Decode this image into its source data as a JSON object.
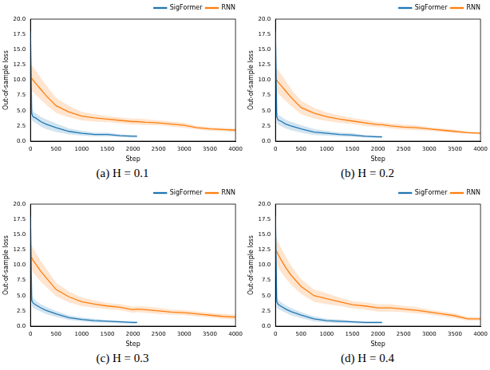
{
  "chart_data": [
    {
      "type": "line",
      "title": "(a) H = 0.1",
      "x_label": "Step",
      "y_label": "Out-of-sample loss",
      "legend": "upper right",
      "grid": false,
      "x": [
        0,
        25,
        50,
        100,
        200,
        300,
        500,
        750,
        1000,
        1250,
        1500,
        1750,
        2000,
        2080,
        2250,
        2500,
        2750,
        3000,
        3250,
        3500,
        3750,
        4000
      ],
      "xlim": [
        0,
        4000
      ],
      "xticks": [
        0,
        500,
        1000,
        1500,
        2000,
        2500,
        3000,
        3500,
        4000
      ],
      "ylim": [
        0,
        20
      ],
      "yticks": [
        {
          "value": 0,
          "label": "0.0"
        },
        2.5,
        {
          "value": 5,
          "label": "5.0"
        },
        7.5,
        {
          "value": 10,
          "label": "10.0"
        },
        12.5,
        {
          "value": 15,
          "label": "15.0"
        },
        17.5,
        {
          "value": 20,
          "label": "20.0"
        }
      ],
      "series": [
        {
          "name": "SigFormer",
          "color": "#1f77b4",
          "values": [
            18,
            4.5,
            4.0,
            3.8,
            3.2,
            2.8,
            2.2,
            1.6,
            1.3,
            1.1,
            1.1,
            0.9,
            0.8,
            0.8,
            null,
            null,
            null,
            null,
            null,
            null,
            null,
            null
          ],
          "lower": [
            16,
            3.5,
            3.2,
            3.0,
            2.4,
            2.0,
            1.5,
            1.1,
            0.9,
            0.8,
            0.8,
            0.7,
            0.6,
            0.6,
            null,
            null,
            null,
            null,
            null,
            null,
            null,
            null
          ],
          "upper": [
            20,
            5.5,
            4.8,
            4.6,
            4.0,
            3.6,
            2.9,
            2.1,
            1.7,
            1.4,
            1.4,
            1.1,
            1.0,
            1.0,
            null,
            null,
            null,
            null,
            null,
            null,
            null,
            null
          ]
        },
        {
          "name": "RNN",
          "color": "#ff7f0e",
          "values": [
            10.5,
            10.3,
            10.0,
            9.5,
            8.5,
            7.5,
            5.8,
            4.8,
            4.1,
            3.8,
            3.6,
            3.4,
            3.2,
            3.2,
            3.1,
            3.0,
            2.8,
            2.6,
            2.2,
            2.0,
            1.9,
            1.8
          ],
          "lower": [
            8.5,
            8.3,
            8.0,
            7.6,
            6.8,
            6.0,
            4.6,
            3.9,
            3.4,
            3.2,
            3.1,
            2.9,
            2.7,
            2.7,
            2.6,
            2.6,
            2.4,
            2.2,
            1.9,
            1.7,
            1.6,
            1.5
          ],
          "upper": [
            12.5,
            12.4,
            12.2,
            11.6,
            10.4,
            9.2,
            7.1,
            5.8,
            4.8,
            4.4,
            4.1,
            3.9,
            3.7,
            3.7,
            3.6,
            3.4,
            3.2,
            3.0,
            2.5,
            2.3,
            2.2,
            2.1
          ]
        }
      ]
    },
    {
      "type": "line",
      "title": "(b) H = 0.2",
      "x_label": "Step",
      "y_label": "Out-of-sample loss",
      "legend": "upper right",
      "grid": false,
      "x": [
        0,
        25,
        50,
        100,
        200,
        300,
        500,
        750,
        1000,
        1250,
        1500,
        1750,
        2000,
        2080,
        2250,
        2500,
        2750,
        3000,
        3250,
        3500,
        3750,
        4000
      ],
      "xlim": [
        0,
        4000
      ],
      "xticks": [
        0,
        500,
        1000,
        1500,
        2000,
        2500,
        3000,
        3500,
        4000
      ],
      "ylim": [
        0,
        20
      ],
      "yticks": [
        {
          "value": 0,
          "label": "0.0"
        },
        2.5,
        {
          "value": 5,
          "label": "5.0"
        },
        7.5,
        {
          "value": 10,
          "label": "10.0"
        },
        12.5,
        {
          "value": 15,
          "label": "15.0"
        },
        17.5,
        {
          "value": 20,
          "label": "20.0"
        }
      ],
      "series": [
        {
          "name": "SigFormer",
          "color": "#1f77b4",
          "values": [
            18,
            4.0,
            3.5,
            3.3,
            2.8,
            2.5,
            2.0,
            1.5,
            1.3,
            1.1,
            1.0,
            0.8,
            0.7,
            0.7,
            null,
            null,
            null,
            null,
            null,
            null,
            null,
            null
          ],
          "lower": [
            16,
            3.0,
            2.7,
            2.5,
            2.1,
            1.8,
            1.4,
            1.0,
            0.9,
            0.8,
            0.7,
            0.6,
            0.5,
            0.5,
            null,
            null,
            null,
            null,
            null,
            null,
            null,
            null
          ],
          "upper": [
            20,
            5.0,
            4.3,
            4.1,
            3.5,
            3.2,
            2.6,
            2.0,
            1.7,
            1.4,
            1.3,
            1.0,
            0.9,
            0.9,
            null,
            null,
            null,
            null,
            null,
            null,
            null,
            null
          ]
        },
        {
          "name": "RNN",
          "color": "#ff7f0e",
          "values": [
            10.2,
            10.0,
            9.7,
            9.2,
            8.2,
            7.2,
            5.5,
            4.6,
            4.0,
            3.6,
            3.3,
            3.0,
            2.7,
            2.7,
            2.5,
            2.3,
            2.2,
            2.0,
            1.8,
            1.6,
            1.4,
            1.3
          ],
          "lower": [
            8.2,
            8.0,
            7.8,
            7.4,
            6.6,
            5.8,
            4.4,
            3.7,
            3.3,
            3.0,
            2.8,
            2.5,
            2.3,
            2.3,
            2.1,
            1.9,
            1.8,
            1.7,
            1.5,
            1.3,
            1.2,
            1.1
          ],
          "upper": [
            12.2,
            12.0,
            11.7,
            11.1,
            9.9,
            8.6,
            6.6,
            5.5,
            4.7,
            4.2,
            3.8,
            3.5,
            3.1,
            3.1,
            2.9,
            2.7,
            2.6,
            2.3,
            2.1,
            1.9,
            1.6,
            1.5
          ]
        }
      ]
    },
    {
      "type": "line",
      "title": "(c) H = 0.3",
      "x_label": "Step",
      "y_label": "Out-of-sample loss",
      "legend": "upper right",
      "grid": false,
      "x": [
        0,
        25,
        50,
        100,
        200,
        300,
        500,
        750,
        1000,
        1250,
        1500,
        1750,
        2000,
        2080,
        2250,
        2500,
        2750,
        3000,
        3250,
        3500,
        3750,
        4000
      ],
      "xlim": [
        0,
        4000
      ],
      "xticks": [
        0,
        500,
        1000,
        1500,
        2000,
        2500,
        3000,
        3500,
        4000
      ],
      "ylim": [
        0,
        20
      ],
      "yticks": [
        {
          "value": 0,
          "label": "0.0"
        },
        2.5,
        {
          "value": 5,
          "label": "5.0"
        },
        7.5,
        {
          "value": 10,
          "label": "10.0"
        },
        12.5,
        {
          "value": 15,
          "label": "15.0"
        },
        17.5,
        {
          "value": 20,
          "label": "20.0"
        }
      ],
      "series": [
        {
          "name": "SigFormer",
          "color": "#1f77b4",
          "values": [
            18,
            4.2,
            3.8,
            3.5,
            3.0,
            2.6,
            2.0,
            1.4,
            1.1,
            0.9,
            0.8,
            0.7,
            0.6,
            0.6,
            null,
            null,
            null,
            null,
            null,
            null,
            null,
            null
          ],
          "lower": [
            16,
            3.3,
            3.0,
            2.8,
            2.4,
            2.0,
            1.5,
            1.0,
            0.8,
            0.6,
            0.6,
            0.5,
            0.4,
            0.4,
            null,
            null,
            null,
            null,
            null,
            null,
            null,
            null
          ],
          "upper": [
            20,
            5.1,
            4.6,
            4.2,
            3.6,
            3.2,
            2.5,
            1.8,
            1.4,
            1.2,
            1.0,
            0.9,
            0.8,
            0.8,
            null,
            null,
            null,
            null,
            null,
            null,
            null,
            null
          ]
        },
        {
          "name": "RNN",
          "color": "#ff7f0e",
          "values": [
            11.5,
            11.2,
            10.8,
            10.2,
            9.0,
            8.0,
            6.0,
            4.8,
            4.0,
            3.6,
            3.3,
            3.1,
            2.7,
            2.8,
            2.7,
            2.5,
            2.3,
            2.2,
            2.0,
            1.8,
            1.6,
            1.5
          ],
          "lower": [
            9.5,
            9.2,
            8.8,
            8.3,
            7.3,
            6.5,
            4.9,
            3.9,
            3.3,
            3.0,
            2.8,
            2.6,
            2.2,
            2.3,
            2.2,
            2.0,
            1.9,
            1.8,
            1.6,
            1.4,
            1.2,
            1.1
          ],
          "upper": [
            13.5,
            13.2,
            12.8,
            12.1,
            10.7,
            9.5,
            7.1,
            5.7,
            4.7,
            4.2,
            3.8,
            3.6,
            3.2,
            3.3,
            3.2,
            3.0,
            2.7,
            2.6,
            2.4,
            2.2,
            2.0,
            1.9
          ]
        }
      ]
    },
    {
      "type": "line",
      "title": "(d) H = 0.4",
      "x_label": "Step",
      "y_label": "Out-of-sample loss",
      "legend": "upper right",
      "grid": false,
      "x": [
        0,
        25,
        50,
        100,
        200,
        300,
        500,
        750,
        1000,
        1250,
        1500,
        1750,
        2000,
        2080,
        2250,
        2500,
        2750,
        3000,
        3250,
        3500,
        3750,
        4000
      ],
      "xlim": [
        0,
        4000
      ],
      "xticks": [
        0,
        500,
        1000,
        1500,
        2000,
        2500,
        3000,
        3500,
        4000
      ],
      "ylim": [
        0,
        20
      ],
      "yticks": [
        {
          "value": 0,
          "label": "0.0"
        },
        2.5,
        {
          "value": 5,
          "label": "5.0"
        },
        7.5,
        {
          "value": 10,
          "label": "10.0"
        },
        12.5,
        {
          "value": 15,
          "label": "15.0"
        },
        17.5,
        {
          "value": 20,
          "label": "20.0"
        }
      ],
      "series": [
        {
          "name": "SigFormer",
          "color": "#1f77b4",
          "values": [
            18,
            4.0,
            3.6,
            3.3,
            2.8,
            2.4,
            1.8,
            1.2,
            0.9,
            0.8,
            0.7,
            0.6,
            0.6,
            0.6,
            null,
            null,
            null,
            null,
            null,
            null,
            null,
            null
          ],
          "lower": [
            16,
            3.1,
            2.8,
            2.6,
            2.2,
            1.8,
            1.3,
            0.8,
            0.6,
            0.5,
            0.5,
            0.4,
            0.4,
            0.4,
            null,
            null,
            null,
            null,
            null,
            null,
            null,
            null
          ],
          "upper": [
            20,
            4.9,
            4.4,
            4.0,
            3.4,
            3.0,
            2.3,
            1.6,
            1.2,
            1.1,
            0.9,
            0.8,
            0.8,
            0.8,
            null,
            null,
            null,
            null,
            null,
            null,
            null,
            null
          ]
        },
        {
          "name": "RNN",
          "color": "#ff7f0e",
          "values": [
            12.5,
            12.2,
            11.8,
            11.0,
            9.6,
            8.4,
            6.5,
            5.0,
            4.5,
            4.0,
            3.5,
            3.3,
            3.0,
            3.0,
            3.0,
            2.8,
            2.6,
            2.3,
            2.0,
            1.7,
            1.2,
            1.2
          ],
          "lower": [
            10.3,
            10.0,
            9.7,
            9.0,
            7.8,
            6.8,
            5.3,
            4.0,
            3.6,
            3.3,
            2.9,
            2.7,
            2.4,
            2.4,
            2.4,
            2.3,
            2.1,
            1.9,
            1.6,
            1.3,
            0.9,
            0.9
          ],
          "upper": [
            14.7,
            14.4,
            13.9,
            13.0,
            11.4,
            10.0,
            7.7,
            6.0,
            5.4,
            4.7,
            4.1,
            3.9,
            3.6,
            3.6,
            3.6,
            3.3,
            3.1,
            2.7,
            2.4,
            2.1,
            1.5,
            1.5
          ]
        }
      ]
    }
  ]
}
